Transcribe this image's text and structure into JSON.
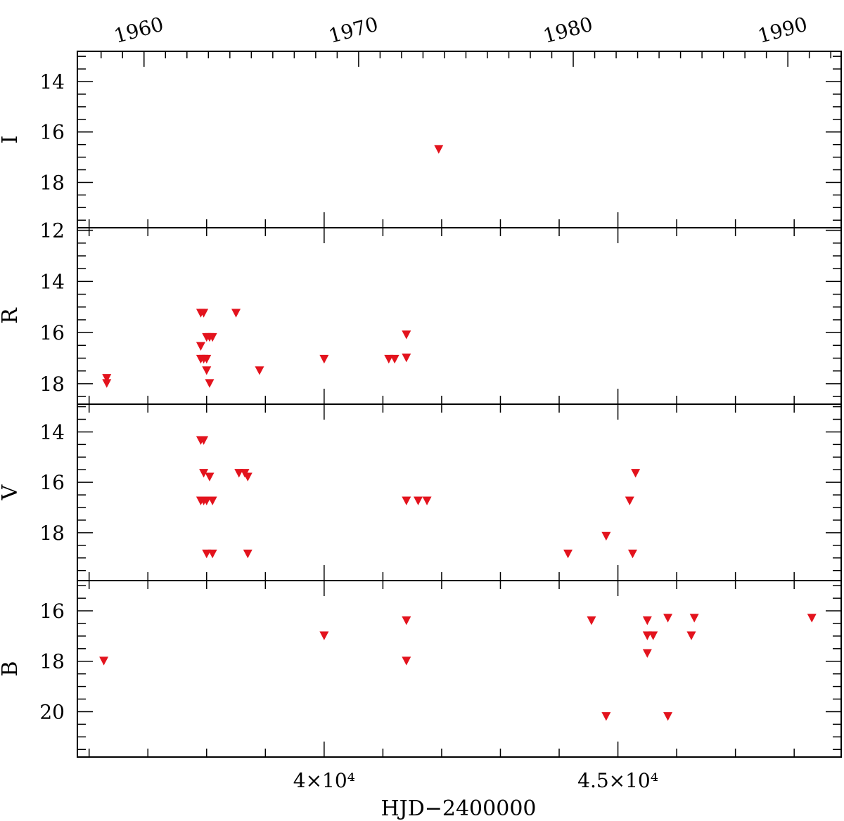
{
  "chart_data": {
    "type": "scatter",
    "marker": "downward-triangle (upper limit)",
    "marker_color": "#e3131d",
    "xlabel": "HJD−2400000",
    "xlim": [
      35800,
      48800
    ],
    "x_ticks": [
      40000,
      45000
    ],
    "x_tick_labels": [
      "4×10⁴",
      "4.5×10⁴"
    ],
    "top_axis": {
      "unit": "year",
      "ticks": [
        1960,
        1970,
        1980,
        1990
      ],
      "tick_labels": [
        "1960",
        "1970",
        "1980",
        "1990"
      ]
    },
    "panels": [
      {
        "band": "I",
        "ylim": [
          12.8,
          19.8
        ],
        "y_ticks": [
          14,
          16,
          18
        ],
        "y_tick_labels": [
          "14",
          "16",
          "18"
        ],
        "points": [
          [
            41950,
            16.7
          ]
        ]
      },
      {
        "band": "R",
        "ylim": [
          11.9,
          18.8
        ],
        "y_ticks": [
          12,
          14,
          16,
          18
        ],
        "y_tick_labels": [
          "12",
          "14",
          "16",
          "18"
        ],
        "points": [
          [
            36300,
            17.8
          ],
          [
            36300,
            18.0
          ],
          [
            37900,
            15.25
          ],
          [
            37950,
            15.25
          ],
          [
            38000,
            16.2
          ],
          [
            38050,
            16.2
          ],
          [
            38100,
            16.2
          ],
          [
            37900,
            16.55
          ],
          [
            37900,
            17.05
          ],
          [
            37950,
            17.05
          ],
          [
            38000,
            17.05
          ],
          [
            38000,
            17.5
          ],
          [
            38050,
            18.0
          ],
          [
            38500,
            15.25
          ],
          [
            38900,
            17.5
          ],
          [
            40000,
            17.05
          ],
          [
            41100,
            17.05
          ],
          [
            41200,
            17.05
          ],
          [
            41400,
            16.1
          ],
          [
            41400,
            17.0
          ]
        ]
      },
      {
        "band": "V",
        "ylim": [
          12.9,
          19.9
        ],
        "y_ticks": [
          14,
          16,
          18
        ],
        "y_tick_labels": [
          "14",
          "16",
          "18"
        ],
        "points": [
          [
            37900,
            14.35
          ],
          [
            37950,
            14.35
          ],
          [
            37950,
            15.65
          ],
          [
            38050,
            15.8
          ],
          [
            38550,
            15.65
          ],
          [
            38650,
            15.65
          ],
          [
            38700,
            15.8
          ],
          [
            37900,
            16.75
          ],
          [
            37950,
            16.75
          ],
          [
            38000,
            16.75
          ],
          [
            38100,
            16.75
          ],
          [
            38000,
            18.85
          ],
          [
            38100,
            18.85
          ],
          [
            38700,
            18.85
          ],
          [
            41400,
            16.75
          ],
          [
            41600,
            16.75
          ],
          [
            41750,
            16.75
          ],
          [
            44150,
            18.85
          ],
          [
            44800,
            18.15
          ],
          [
            45200,
            16.75
          ],
          [
            45300,
            15.65
          ],
          [
            45250,
            18.85
          ]
        ]
      },
      {
        "band": "B",
        "ylim": [
          14.8,
          21.8
        ],
        "y_ticks": [
          16,
          18,
          20
        ],
        "y_tick_labels": [
          "16",
          "18",
          "20"
        ],
        "points": [
          [
            36250,
            18.0
          ],
          [
            40000,
            17.0
          ],
          [
            41400,
            16.4
          ],
          [
            41400,
            18.0
          ],
          [
            44550,
            16.4
          ],
          [
            44800,
            20.2
          ],
          [
            45500,
            16.4
          ],
          [
            45500,
            17.0
          ],
          [
            45600,
            17.0
          ],
          [
            45500,
            17.7
          ],
          [
            45850,
            16.3
          ],
          [
            45850,
            20.2
          ],
          [
            46300,
            16.3
          ],
          [
            46250,
            17.0
          ],
          [
            48300,
            16.3
          ]
        ]
      }
    ]
  }
}
